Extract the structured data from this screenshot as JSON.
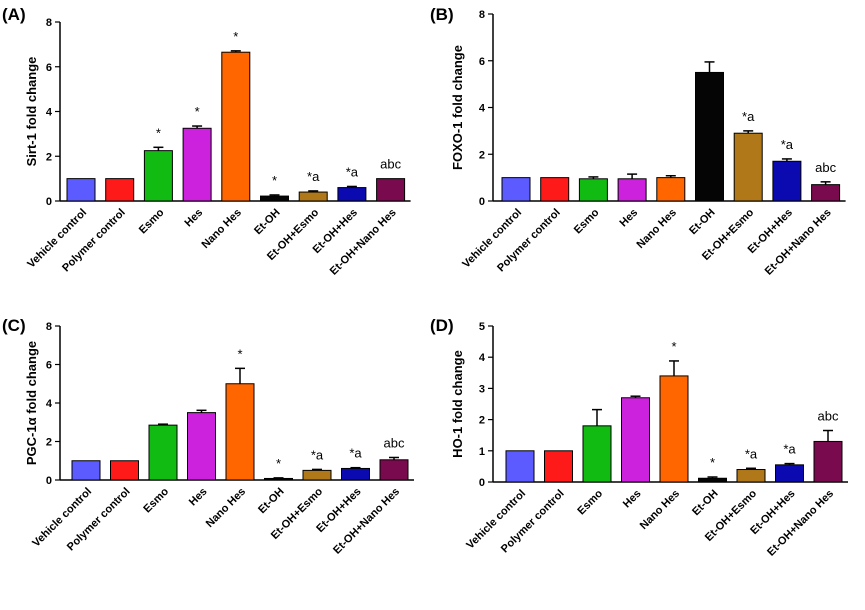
{
  "chart_data": [
    {
      "type": "bar",
      "panel": "(A)",
      "ylabel": "Sirt-1 fold change",
      "ylim": [
        0,
        8
      ],
      "yticks": [
        0,
        2,
        4,
        6,
        8
      ],
      "categories": [
        "Vehicle control",
        "Polymer control",
        "Esmo",
        "Hes",
        "Nano Hes",
        "Et-OH",
        "Et-OH+Esmo",
        "Et-OH+Hes",
        "Et-OH+Nano Hes"
      ],
      "values": [
        1.0,
        1.0,
        2.25,
        3.25,
        6.65,
        0.22,
        0.4,
        0.6,
        1.0
      ],
      "errors": [
        0,
        0,
        0.15,
        0.1,
        0.06,
        0.05,
        0.05,
        0.05,
        0
      ],
      "annotations": [
        "",
        "",
        "*",
        "*",
        "*",
        "*",
        "*a",
        "*a",
        "abc"
      ]
    },
    {
      "type": "bar",
      "panel": "(B)",
      "ylabel": "FOXO-1 fold change",
      "ylim": [
        0,
        8
      ],
      "yticks": [
        0,
        2,
        4,
        6,
        8
      ],
      "categories": [
        "Vehicle control",
        "Polymer control",
        "Esmo",
        "Hes",
        "Nano Hes",
        "Et-OH",
        "Et-OH+Esmo",
        "Et-OH+Hes",
        "Et-OH+Nano Hes"
      ],
      "values": [
        1.0,
        1.0,
        0.95,
        0.95,
        1.0,
        5.5,
        2.9,
        1.7,
        0.7
      ],
      "errors": [
        0,
        0,
        0.08,
        0.2,
        0.08,
        0.45,
        0.1,
        0.1,
        0.12
      ],
      "annotations": [
        "",
        "",
        "",
        "",
        "",
        "",
        "*a",
        "*a",
        "abc"
      ]
    },
    {
      "type": "bar",
      "panel": "(C)",
      "ylabel": "PGC-1α fold change",
      "ylim": [
        0,
        8
      ],
      "yticks": [
        0,
        2,
        4,
        6,
        8
      ],
      "categories": [
        "Vehicle control",
        "Polymer control",
        "Esmo",
        "Hes",
        "Nano Hes",
        "Et-OH",
        "Et-OH+Esmo",
        "Et-OH+Hes",
        "Et-OH+Nano Hes"
      ],
      "values": [
        1.0,
        1.0,
        2.85,
        3.5,
        5.0,
        0.08,
        0.5,
        0.6,
        1.05
      ],
      "errors": [
        0,
        0,
        0.05,
        0.12,
        0.8,
        0.03,
        0.05,
        0.04,
        0.12
      ],
      "annotations": [
        "",
        "",
        "",
        "",
        "*",
        "*",
        "*a",
        "*a",
        "abc"
      ]
    },
    {
      "type": "bar",
      "panel": "(D)",
      "ylabel": "HO-1 fold change",
      "ylim": [
        0,
        5
      ],
      "yticks": [
        0,
        1,
        2,
        3,
        4,
        5
      ],
      "categories": [
        "Vehicle control",
        "Polymer control",
        "Esmo",
        "Hes",
        "Nano Hes",
        "Et-OH",
        "Et-OH+Esmo",
        "Et-OH+Hes",
        "Et-OH+Nano Hes"
      ],
      "values": [
        1.0,
        1.0,
        1.8,
        2.7,
        3.4,
        0.12,
        0.4,
        0.55,
        1.3
      ],
      "errors": [
        0,
        0,
        0.52,
        0.05,
        0.48,
        0.04,
        0.04,
        0.04,
        0.35
      ],
      "annotations": [
        "",
        "",
        "",
        "",
        "*",
        "*",
        "*a",
        "*a",
        "abc"
      ]
    }
  ],
  "colors": [
    "#5b5bff",
    "#ff1a1a",
    "#11bb11",
    "#cc22dd",
    "#ff6600",
    "#050505",
    "#b07818",
    "#0a0ab0",
    "#7a0a4e"
  ]
}
